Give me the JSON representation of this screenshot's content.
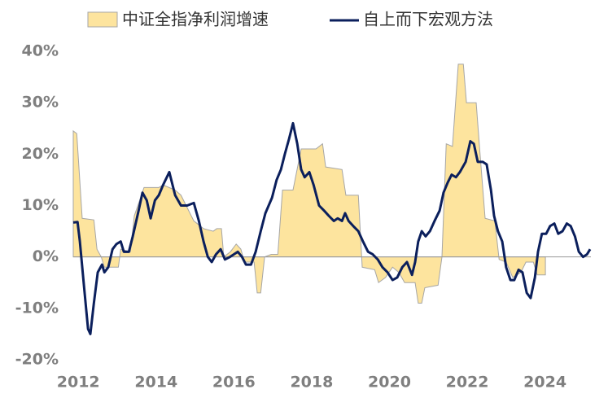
{
  "chart_data": {
    "type": "area_line",
    "series": [
      {
        "name": "中证全指净利润增速",
        "type": "area",
        "color": "#fde49e",
        "stroke": "#a6a6a6",
        "x": [
          2011.87,
          2011.96,
          2012.1,
          2012.4,
          2012.48,
          2012.59,
          2012.67,
          2013.03,
          2013.09,
          2013.34,
          2013.44,
          2013.69,
          2014.07,
          2014.18,
          2014.49,
          2014.64,
          2014.97,
          2015.22,
          2015.47,
          2015.56,
          2015.68,
          2015.74,
          2015.91,
          2016.06,
          2016.18,
          2016.27,
          2016.52,
          2016.6,
          2016.69,
          2016.79,
          2016.96,
          2017.13,
          2017.25,
          2017.52,
          2017.73,
          2018.11,
          2018.28,
          2018.36,
          2018.78,
          2018.88,
          2019.2,
          2019.3,
          2019.62,
          2019.72,
          2019.9,
          2020.08,
          2020.24,
          2020.39,
          2020.66,
          2020.74,
          2020.83,
          2020.91,
          2021.25,
          2021.35,
          2021.46,
          2021.62,
          2021.77,
          2021.9,
          2021.98,
          2022.23,
          2022.33,
          2022.46,
          2022.71,
          2022.82,
          2023.0,
          2023.17,
          2023.38,
          2023.51,
          2023.7,
          2023.8,
          2024.01
        ],
        "values": [
          24.5,
          24,
          7.5,
          7.2,
          1.5,
          0,
          -2,
          -2,
          1.5,
          1,
          8,
          13.5,
          13.5,
          14,
          13,
          12,
          7,
          5.5,
          5,
          5.5,
          5.5,
          0,
          1,
          2.5,
          1.5,
          -1,
          -1,
          -7,
          -7,
          0,
          0.5,
          0.5,
          13,
          13,
          21,
          21,
          22,
          17.5,
          17,
          12,
          12,
          -2,
          -2.5,
          -5,
          -4,
          -2,
          -3,
          -5,
          -5,
          -9,
          -9,
          -6,
          -5.5,
          0,
          22,
          21.5,
          37.5,
          37.5,
          30,
          30,
          20,
          7.5,
          7,
          -0.5,
          -1,
          -4,
          -3,
          -1,
          -1,
          -3.5,
          -3.5
        ]
      },
      {
        "name": "自上而下宏观方法",
        "type": "line",
        "color": "#0b1f5c",
        "x": [
          2011.87,
          2011.98,
          2012.04,
          2012.15,
          2012.25,
          2012.31,
          2012.4,
          2012.5,
          2012.61,
          2012.67,
          2012.77,
          2012.88,
          2012.98,
          2013.09,
          2013.17,
          2013.3,
          2013.4,
          2013.55,
          2013.65,
          2013.76,
          2013.86,
          2013.97,
          2014.07,
          2014.18,
          2014.34,
          2014.49,
          2014.64,
          2014.8,
          2014.97,
          2015.1,
          2015.22,
          2015.33,
          2015.43,
          2015.54,
          2015.66,
          2015.77,
          2015.9,
          2016.0,
          2016.1,
          2016.21,
          2016.31,
          2016.44,
          2016.56,
          2016.69,
          2016.81,
          2016.98,
          2017.1,
          2017.21,
          2017.31,
          2017.42,
          2017.52,
          2017.63,
          2017.73,
          2017.82,
          2017.94,
          2018.05,
          2018.19,
          2018.32,
          2018.44,
          2018.57,
          2018.67,
          2018.78,
          2018.86,
          2018.95,
          2019.07,
          2019.2,
          2019.32,
          2019.45,
          2019.57,
          2019.7,
          2019.82,
          2019.95,
          2020.08,
          2020.2,
          2020.33,
          2020.45,
          2020.58,
          2020.66,
          2020.74,
          2020.83,
          2020.93,
          2021.04,
          2021.16,
          2021.29,
          2021.39,
          2021.5,
          2021.6,
          2021.71,
          2021.81,
          2021.96,
          2022.08,
          2022.17,
          2022.27,
          2022.4,
          2022.5,
          2022.61,
          2022.69,
          2022.79,
          2022.9,
          2023.0,
          2023.11,
          2023.21,
          2023.32,
          2023.42,
          2023.53,
          2023.63,
          2023.74,
          2023.82,
          2023.92,
          2024.03,
          2024.13,
          2024.24,
          2024.34,
          2024.45,
          2024.56,
          2024.66,
          2024.77,
          2024.87,
          2024.98,
          2025.08,
          2025.16
        ],
        "values": [
          6.7,
          6.8,
          3,
          -6,
          -14,
          -15,
          -9,
          -3,
          -1.5,
          -3,
          -2,
          1.5,
          2.5,
          3,
          1,
          1,
          4,
          9,
          12.5,
          11,
          7.5,
          11,
          12,
          14,
          16.5,
          12,
          10,
          10,
          10.5,
          7,
          3,
          0,
          -1,
          0.5,
          1.5,
          -0.5,
          0,
          0.5,
          1,
          0,
          -1.5,
          -1.5,
          1,
          5,
          8.5,
          11.5,
          15,
          17,
          20,
          23,
          26,
          22,
          17,
          15.5,
          16.5,
          14,
          10,
          9,
          8,
          7,
          7.5,
          7,
          8.5,
          7,
          6,
          5,
          3,
          1,
          0.5,
          -0.5,
          -2,
          -3,
          -4.5,
          -4,
          -2,
          -1,
          -3.5,
          -1,
          3,
          5,
          4,
          5,
          7,
          9,
          12.5,
          14.5,
          16,
          15.5,
          16.5,
          18.5,
          22.5,
          22,
          18.5,
          18.5,
          18,
          13,
          8,
          5,
          3,
          -2,
          -4.5,
          -4.5,
          -2.5,
          -3,
          -7,
          -8,
          -4,
          1,
          4.5,
          4.5,
          6,
          6.5,
          4.5,
          5,
          6.5,
          6,
          4,
          1,
          0,
          0.5,
          1.5
        ]
      }
    ],
    "xlim": [
      2011.87,
      2025.18
    ],
    "xticks": [
      2012,
      2014,
      2016,
      2018,
      2020,
      2022,
      2024
    ],
    "ylim": [
      -22,
      42
    ],
    "yticks": [
      {
        "value": 40,
        "label": "40%"
      },
      {
        "value": 30,
        "label": "30%"
      },
      {
        "value": 20,
        "label": "20%"
      },
      {
        "value": 10,
        "label": "10%"
      },
      {
        "value": 0,
        "label": "0%"
      },
      {
        "value": -10,
        "label": "-10%"
      },
      {
        "value": -20,
        "label": "-20%"
      }
    ],
    "grid": false,
    "legend": "top"
  }
}
